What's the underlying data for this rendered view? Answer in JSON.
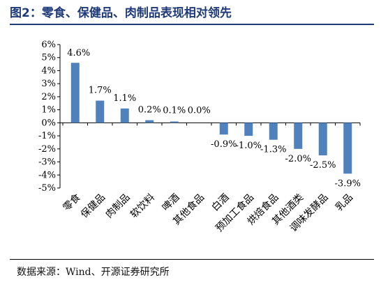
{
  "header": {
    "title": "图2：零食、保健品、肉制品表现相对领先"
  },
  "footer": {
    "source": "数据来源：Wind、开源证券研究所"
  },
  "chart_data": {
    "type": "bar",
    "title": "图2：零食、保健品、肉制品表现相对领先",
    "xlabel": "",
    "ylabel": "",
    "categories": [
      "零食",
      "保健品",
      "肉制品",
      "软饮料",
      "啤酒",
      "其他食品",
      "白酒",
      "预加工食品",
      "烘焙食品",
      "其他酒类",
      "调味发酵品",
      "乳品"
    ],
    "values": [
      4.6,
      1.7,
      1.1,
      0.2,
      0.1,
      0.0,
      -0.9,
      -1.0,
      -1.3,
      -2.0,
      -2.5,
      -3.9
    ],
    "data_labels": [
      "4.6%",
      "1.7%",
      "1.1%",
      "0.2%",
      "0.1%",
      "0.0%",
      "-0.9%",
      "-1.0%",
      "-1.3%",
      "-2.0%",
      "-2.5%",
      "-3.9%"
    ],
    "ylim": [
      -5,
      6
    ],
    "yticks": [
      6,
      5,
      4,
      3,
      2,
      1,
      0,
      -1,
      -2,
      -3,
      -4,
      -5
    ],
    "ytick_labels": [
      "6%",
      "5%",
      "4%",
      "3%",
      "2%",
      "1%",
      "0%",
      "-1%",
      "-2%",
      "-3%",
      "-4%",
      "-5%"
    ],
    "bar_color": "#4f81bd",
    "grid": false,
    "legend": "none"
  }
}
